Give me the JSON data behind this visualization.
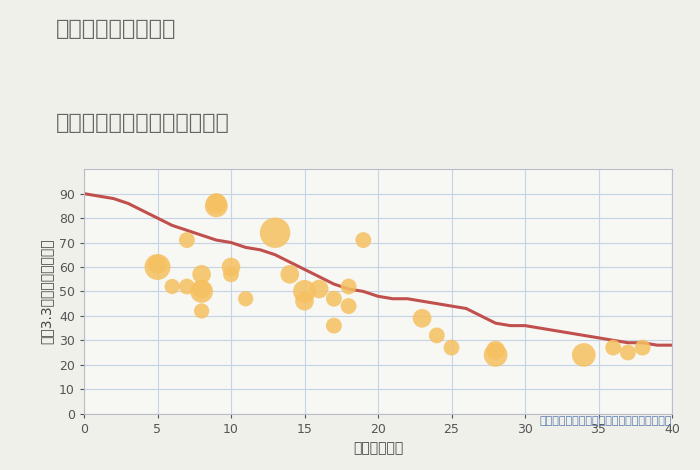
{
  "title_line1": "岐阜県本巣市温井の",
  "title_line2": "築年数別中古マンション価格",
  "xlabel": "築年数（年）",
  "ylabel": "坪（3.3㎡）単価（万円）",
  "background_color": "#f0f0eb",
  "plot_bg_color": "#f7f7f3",
  "grid_color": "#c5d5e5",
  "annotation": "円の大きさは、取引のあった物件面積を示す",
  "xlim": [
    0,
    40
  ],
  "ylim": [
    0,
    100
  ],
  "xticks": [
    0,
    5,
    10,
    15,
    20,
    25,
    30,
    35,
    40
  ],
  "yticks": [
    0,
    10,
    20,
    30,
    40,
    50,
    60,
    70,
    80,
    90
  ],
  "scatter_x": [
    5,
    5,
    6,
    7,
    7,
    8,
    8,
    8,
    8,
    9,
    9,
    10,
    10,
    11,
    13,
    14,
    15,
    15,
    16,
    17,
    17,
    18,
    18,
    19,
    23,
    24,
    25,
    28,
    28,
    34,
    36,
    37,
    38
  ],
  "scatter_y": [
    60,
    61,
    52,
    71,
    52,
    51,
    57,
    50,
    42,
    85,
    86,
    60,
    57,
    47,
    74,
    57,
    50,
    46,
    51,
    47,
    36,
    52,
    44,
    71,
    39,
    32,
    27,
    26,
    24,
    24,
    27,
    25,
    27
  ],
  "scatter_size": [
    350,
    180,
    120,
    130,
    130,
    180,
    180,
    270,
    120,
    270,
    220,
    180,
    130,
    120,
    480,
    180,
    270,
    180,
    180,
    130,
    130,
    130,
    130,
    130,
    180,
    130,
    130,
    180,
    290,
    290,
    130,
    130,
    130
  ],
  "scatter_color": "#f5c060",
  "scatter_alpha": 0.85,
  "trend_x": [
    0,
    1,
    2,
    3,
    4,
    5,
    6,
    7,
    8,
    9,
    10,
    11,
    12,
    13,
    14,
    15,
    16,
    17,
    18,
    19,
    20,
    21,
    22,
    23,
    24,
    25,
    26,
    27,
    28,
    29,
    30,
    31,
    32,
    33,
    34,
    35,
    36,
    37,
    38,
    39,
    40
  ],
  "trend_y": [
    90,
    89,
    88,
    86,
    83,
    80,
    77,
    75,
    73,
    71,
    70,
    68,
    67,
    65,
    62,
    59,
    56,
    53,
    51,
    50,
    48,
    47,
    47,
    46,
    45,
    44,
    43,
    40,
    37,
    36,
    36,
    35,
    34,
    33,
    32,
    31,
    30,
    29,
    29,
    28,
    28
  ],
  "trend_color": "#c0504d",
  "trend_linewidth": 2.2,
  "title_color": "#666666",
  "title_fontsize": 16,
  "label_fontsize": 10,
  "tick_fontsize": 9,
  "annotation_color": "#5577aa",
  "annotation_fontsize": 8
}
